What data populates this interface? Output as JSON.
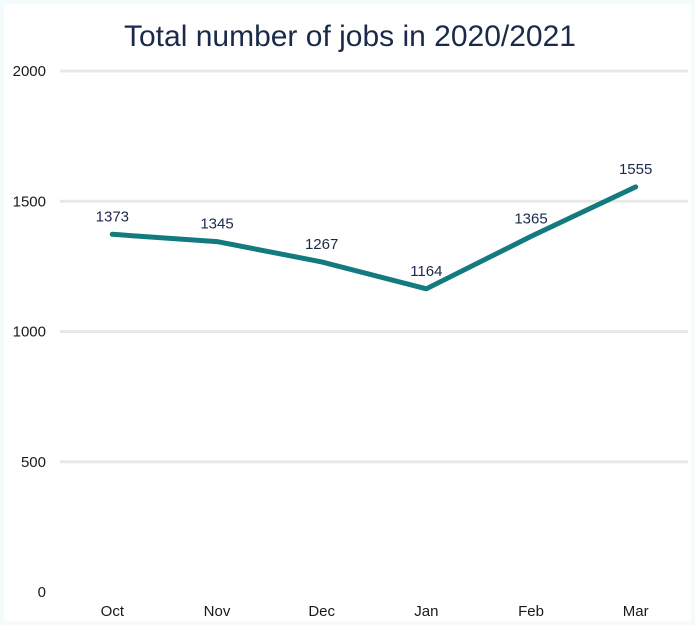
{
  "chart_data": {
    "type": "line",
    "title": "Total number of jobs in 2020/2021",
    "categories": [
      "Oct",
      "Nov",
      "Dec",
      "Jan",
      "Feb",
      "Mar"
    ],
    "series": [
      {
        "values": [
          1373,
          1345,
          1267,
          1164,
          1365,
          1555
        ]
      }
    ],
    "yticks": [
      "0",
      "500",
      "1000",
      "1500",
      "2000"
    ],
    "data_labels": [
      "1373",
      "1345",
      "1267",
      "1164",
      "1365",
      "1555"
    ],
    "ylim": [
      0,
      2000
    ],
    "grid": true,
    "line_color": "#137a7f"
  }
}
